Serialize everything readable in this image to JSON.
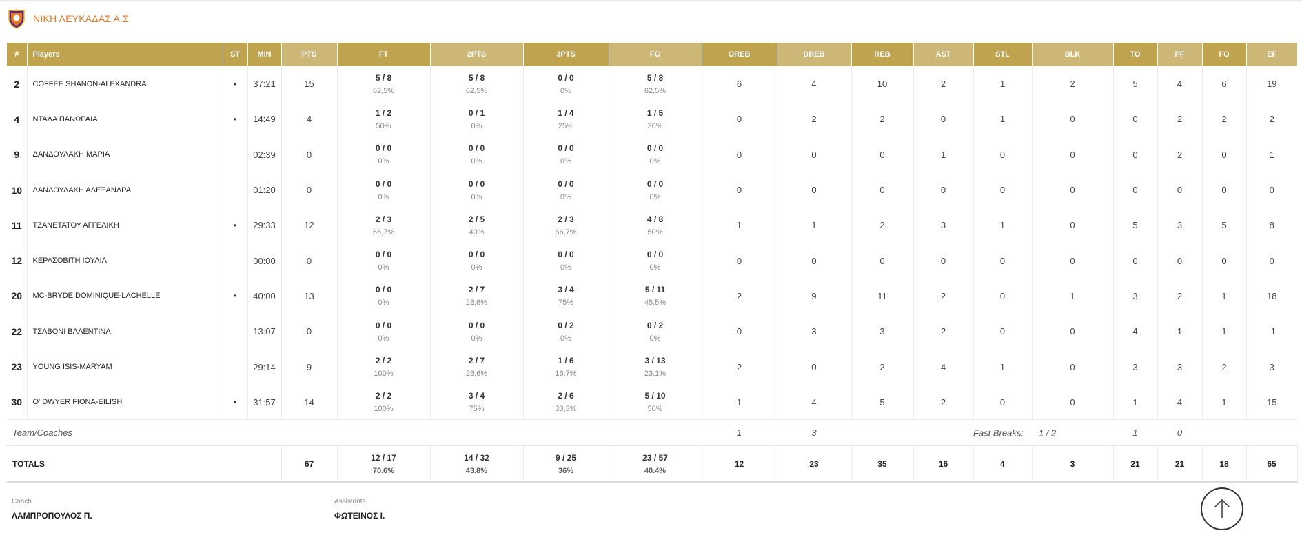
{
  "team": {
    "name": "ΝΙΚΗ ΛΕΥΚΑΔΑΣ Α.Σ"
  },
  "colors": {
    "header_dark": "#bfa34e",
    "header_light": "#cdb777",
    "team_name": "#e87722"
  },
  "headers": {
    "num": "#",
    "players": "Players",
    "st": "ST",
    "min": "MIN",
    "pts": "PTS",
    "ft": "FT",
    "p2": "2PTS",
    "p3": "3PTS",
    "fg": "FG",
    "oreb": "OREB",
    "dreb": "DREB",
    "reb": "REB",
    "ast": "AST",
    "stl": "STL",
    "blk": "BLK",
    "to": "TO",
    "pf": "PF",
    "fo": "FO",
    "ef": "EF"
  },
  "players": [
    {
      "num": "2",
      "name": "COFFEE SHANON-ALEXANDRA",
      "st": "•",
      "min": "37:21",
      "pts": "15",
      "ft": "5 / 8",
      "ft_pct": "62,5%",
      "p2": "5 / 8",
      "p2_pct": "62,5%",
      "p3": "0 / 0",
      "p3_pct": "0%",
      "fg": "5 / 8",
      "fg_pct": "62,5%",
      "oreb": "6",
      "dreb": "4",
      "reb": "10",
      "ast": "2",
      "stl": "1",
      "blk": "2",
      "to": "5",
      "pf": "4",
      "fo": "6",
      "ef": "19"
    },
    {
      "num": "4",
      "name": "ΝΤΑΛΑ ΠΑΝΩΡΑΙΑ",
      "st": "•",
      "min": "14:49",
      "pts": "4",
      "ft": "1 / 2",
      "ft_pct": "50%",
      "p2": "0 / 1",
      "p2_pct": "0%",
      "p3": "1 / 4",
      "p3_pct": "25%",
      "fg": "1 / 5",
      "fg_pct": "20%",
      "oreb": "0",
      "dreb": "2",
      "reb": "2",
      "ast": "0",
      "stl": "1",
      "blk": "0",
      "to": "0",
      "pf": "2",
      "fo": "2",
      "ef": "2"
    },
    {
      "num": "9",
      "name": "ΔΑΝΔΟΥΛΑΚΗ ΜΑΡΙΑ",
      "st": "",
      "min": "02:39",
      "pts": "0",
      "ft": "0 / 0",
      "ft_pct": "0%",
      "p2": "0 / 0",
      "p2_pct": "0%",
      "p3": "0 / 0",
      "p3_pct": "0%",
      "fg": "0 / 0",
      "fg_pct": "0%",
      "oreb": "0",
      "dreb": "0",
      "reb": "0",
      "ast": "1",
      "stl": "0",
      "blk": "0",
      "to": "0",
      "pf": "2",
      "fo": "0",
      "ef": "1"
    },
    {
      "num": "10",
      "name": "ΔΑΝΔΟΥΛΑΚΗ ΑΛΕΞΑΝΔΡΑ",
      "st": "",
      "min": "01:20",
      "pts": "0",
      "ft": "0 / 0",
      "ft_pct": "0%",
      "p2": "0 / 0",
      "p2_pct": "0%",
      "p3": "0 / 0",
      "p3_pct": "0%",
      "fg": "0 / 0",
      "fg_pct": "0%",
      "oreb": "0",
      "dreb": "0",
      "reb": "0",
      "ast": "0",
      "stl": "0",
      "blk": "0",
      "to": "0",
      "pf": "0",
      "fo": "0",
      "ef": "0"
    },
    {
      "num": "11",
      "name": "ΤΖΑΝΕΤΑΤΟΥ ΑΓΓΕΛΙΚΗ",
      "st": "•",
      "min": "29:33",
      "pts": "12",
      "ft": "2 / 3",
      "ft_pct": "66,7%",
      "p2": "2 / 5",
      "p2_pct": "40%",
      "p3": "2 / 3",
      "p3_pct": "66,7%",
      "fg": "4 / 8",
      "fg_pct": "50%",
      "oreb": "1",
      "dreb": "1",
      "reb": "2",
      "ast": "3",
      "stl": "1",
      "blk": "0",
      "to": "5",
      "pf": "3",
      "fo": "5",
      "ef": "8"
    },
    {
      "num": "12",
      "name": "ΚΕΡΑΣΟΒΙΤΗ ΙΟΥΛΙΑ",
      "st": "",
      "min": "00:00",
      "pts": "0",
      "ft": "0 / 0",
      "ft_pct": "0%",
      "p2": "0 / 0",
      "p2_pct": "0%",
      "p3": "0 / 0",
      "p3_pct": "0%",
      "fg": "0 / 0",
      "fg_pct": "0%",
      "oreb": "0",
      "dreb": "0",
      "reb": "0",
      "ast": "0",
      "stl": "0",
      "blk": "0",
      "to": "0",
      "pf": "0",
      "fo": "0",
      "ef": "0"
    },
    {
      "num": "20",
      "name": "MC-BRYDE DOMINIQUE-LACHELLE",
      "st": "•",
      "min": "40:00",
      "pts": "13",
      "ft": "0 / 0",
      "ft_pct": "0%",
      "p2": "2 / 7",
      "p2_pct": "28,6%",
      "p3": "3 / 4",
      "p3_pct": "75%",
      "fg": "5 / 11",
      "fg_pct": "45,5%",
      "oreb": "2",
      "dreb": "9",
      "reb": "11",
      "ast": "2",
      "stl": "0",
      "blk": "1",
      "to": "3",
      "pf": "2",
      "fo": "1",
      "ef": "18"
    },
    {
      "num": "22",
      "name": "ΤΣΑΒΟΝΙ ΒΑΛΕΝΤΙΝΑ",
      "st": "",
      "min": "13:07",
      "pts": "0",
      "ft": "0 / 0",
      "ft_pct": "0%",
      "p2": "0 / 0",
      "p2_pct": "0%",
      "p3": "0 / 2",
      "p3_pct": "0%",
      "fg": "0 / 2",
      "fg_pct": "0%",
      "oreb": "0",
      "dreb": "3",
      "reb": "3",
      "ast": "2",
      "stl": "0",
      "blk": "0",
      "to": "4",
      "pf": "1",
      "fo": "1",
      "ef": "-1"
    },
    {
      "num": "23",
      "name": "YOUNG ISIS-MARYAM",
      "st": "",
      "min": "29:14",
      "pts": "9",
      "ft": "2 / 2",
      "ft_pct": "100%",
      "p2": "2 / 7",
      "p2_pct": "28,6%",
      "p3": "1 / 6",
      "p3_pct": "16,7%",
      "fg": "3 / 13",
      "fg_pct": "23,1%",
      "oreb": "2",
      "dreb": "0",
      "reb": "2",
      "ast": "4",
      "stl": "1",
      "blk": "0",
      "to": "3",
      "pf": "3",
      "fo": "2",
      "ef": "3"
    },
    {
      "num": "30",
      "name": "O' DWYER FIONA-EILISH",
      "st": "•",
      "min": "31:57",
      "pts": "14",
      "ft": "2 / 2",
      "ft_pct": "100%",
      "p2": "3 / 4",
      "p2_pct": "75%",
      "p3": "2 / 6",
      "p3_pct": "33,3%",
      "fg": "5 / 10",
      "fg_pct": "50%",
      "oreb": "1",
      "dreb": "4",
      "reb": "5",
      "ast": "2",
      "stl": "0",
      "blk": "0",
      "to": "1",
      "pf": "4",
      "fo": "1",
      "ef": "15"
    }
  ],
  "team_coaches": {
    "label": "Team/Coaches",
    "oreb": "1",
    "dreb": "3",
    "fast_breaks_label": "Fast Breaks:",
    "fast_breaks": "1 / 2",
    "to": "1",
    "pf": "0"
  },
  "totals": {
    "label": "TOTALS",
    "pts": "67",
    "ft": "12 / 17",
    "ft_pct": "70.6%",
    "p2": "14 / 32",
    "p2_pct": "43.8%",
    "p3": "9 / 25",
    "p3_pct": "36%",
    "fg": "23 / 57",
    "fg_pct": "40.4%",
    "oreb": "12",
    "dreb": "23",
    "reb": "35",
    "ast": "16",
    "stl": "4",
    "blk": "3",
    "to": "21",
    "pf": "21",
    "fo": "18",
    "ef": "65"
  },
  "staff": {
    "coach_label": "Coach",
    "coach_name": "ΛΑΜΠΡΟΠΟΥΛΟΣ Π.",
    "assistants_label": "Assistants",
    "assistants_name": "ΦΩΤΕΙΝΟΣ Ι."
  },
  "icons": {
    "logo": "team-crest-icon",
    "scroll_top": "arrow-up-icon"
  }
}
